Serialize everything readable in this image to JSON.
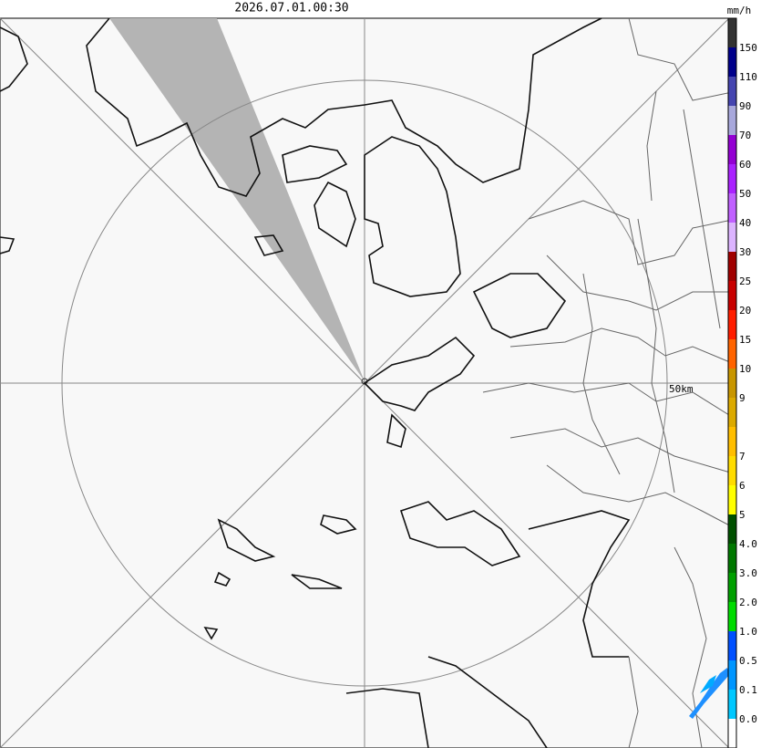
{
  "header": {
    "timestamp": "2026.07.01.00:30"
  },
  "legend": {
    "unit": "mm/h",
    "colors": [
      "#333333",
      "#00008b",
      "#4545b0",
      "#a8a8dc",
      "#9400d3",
      "#aa22ff",
      "#c060ff",
      "#dcb4ff",
      "#a00000",
      "#c80000",
      "#ff1e00",
      "#ff6400",
      "#c89600",
      "#dcaa00",
      "#ffbe00",
      "#ffdc00",
      "#ffff00",
      "#005000",
      "#007800",
      "#00a000",
      "#00dc00",
      "#0050ff",
      "#0096ff",
      "#00c8ff",
      "#ffffff"
    ],
    "labels": [
      "150",
      "110",
      "90",
      "70",
      "60",
      "50",
      "40",
      "30",
      "25",
      "20",
      "15",
      "10",
      "9",
      null,
      "7",
      "6",
      "5",
      "4.0",
      "3.0",
      "2.0",
      "1.0",
      "0.5",
      "0.1",
      "0.0"
    ]
  },
  "map": {
    "range_label": "50km"
  }
}
